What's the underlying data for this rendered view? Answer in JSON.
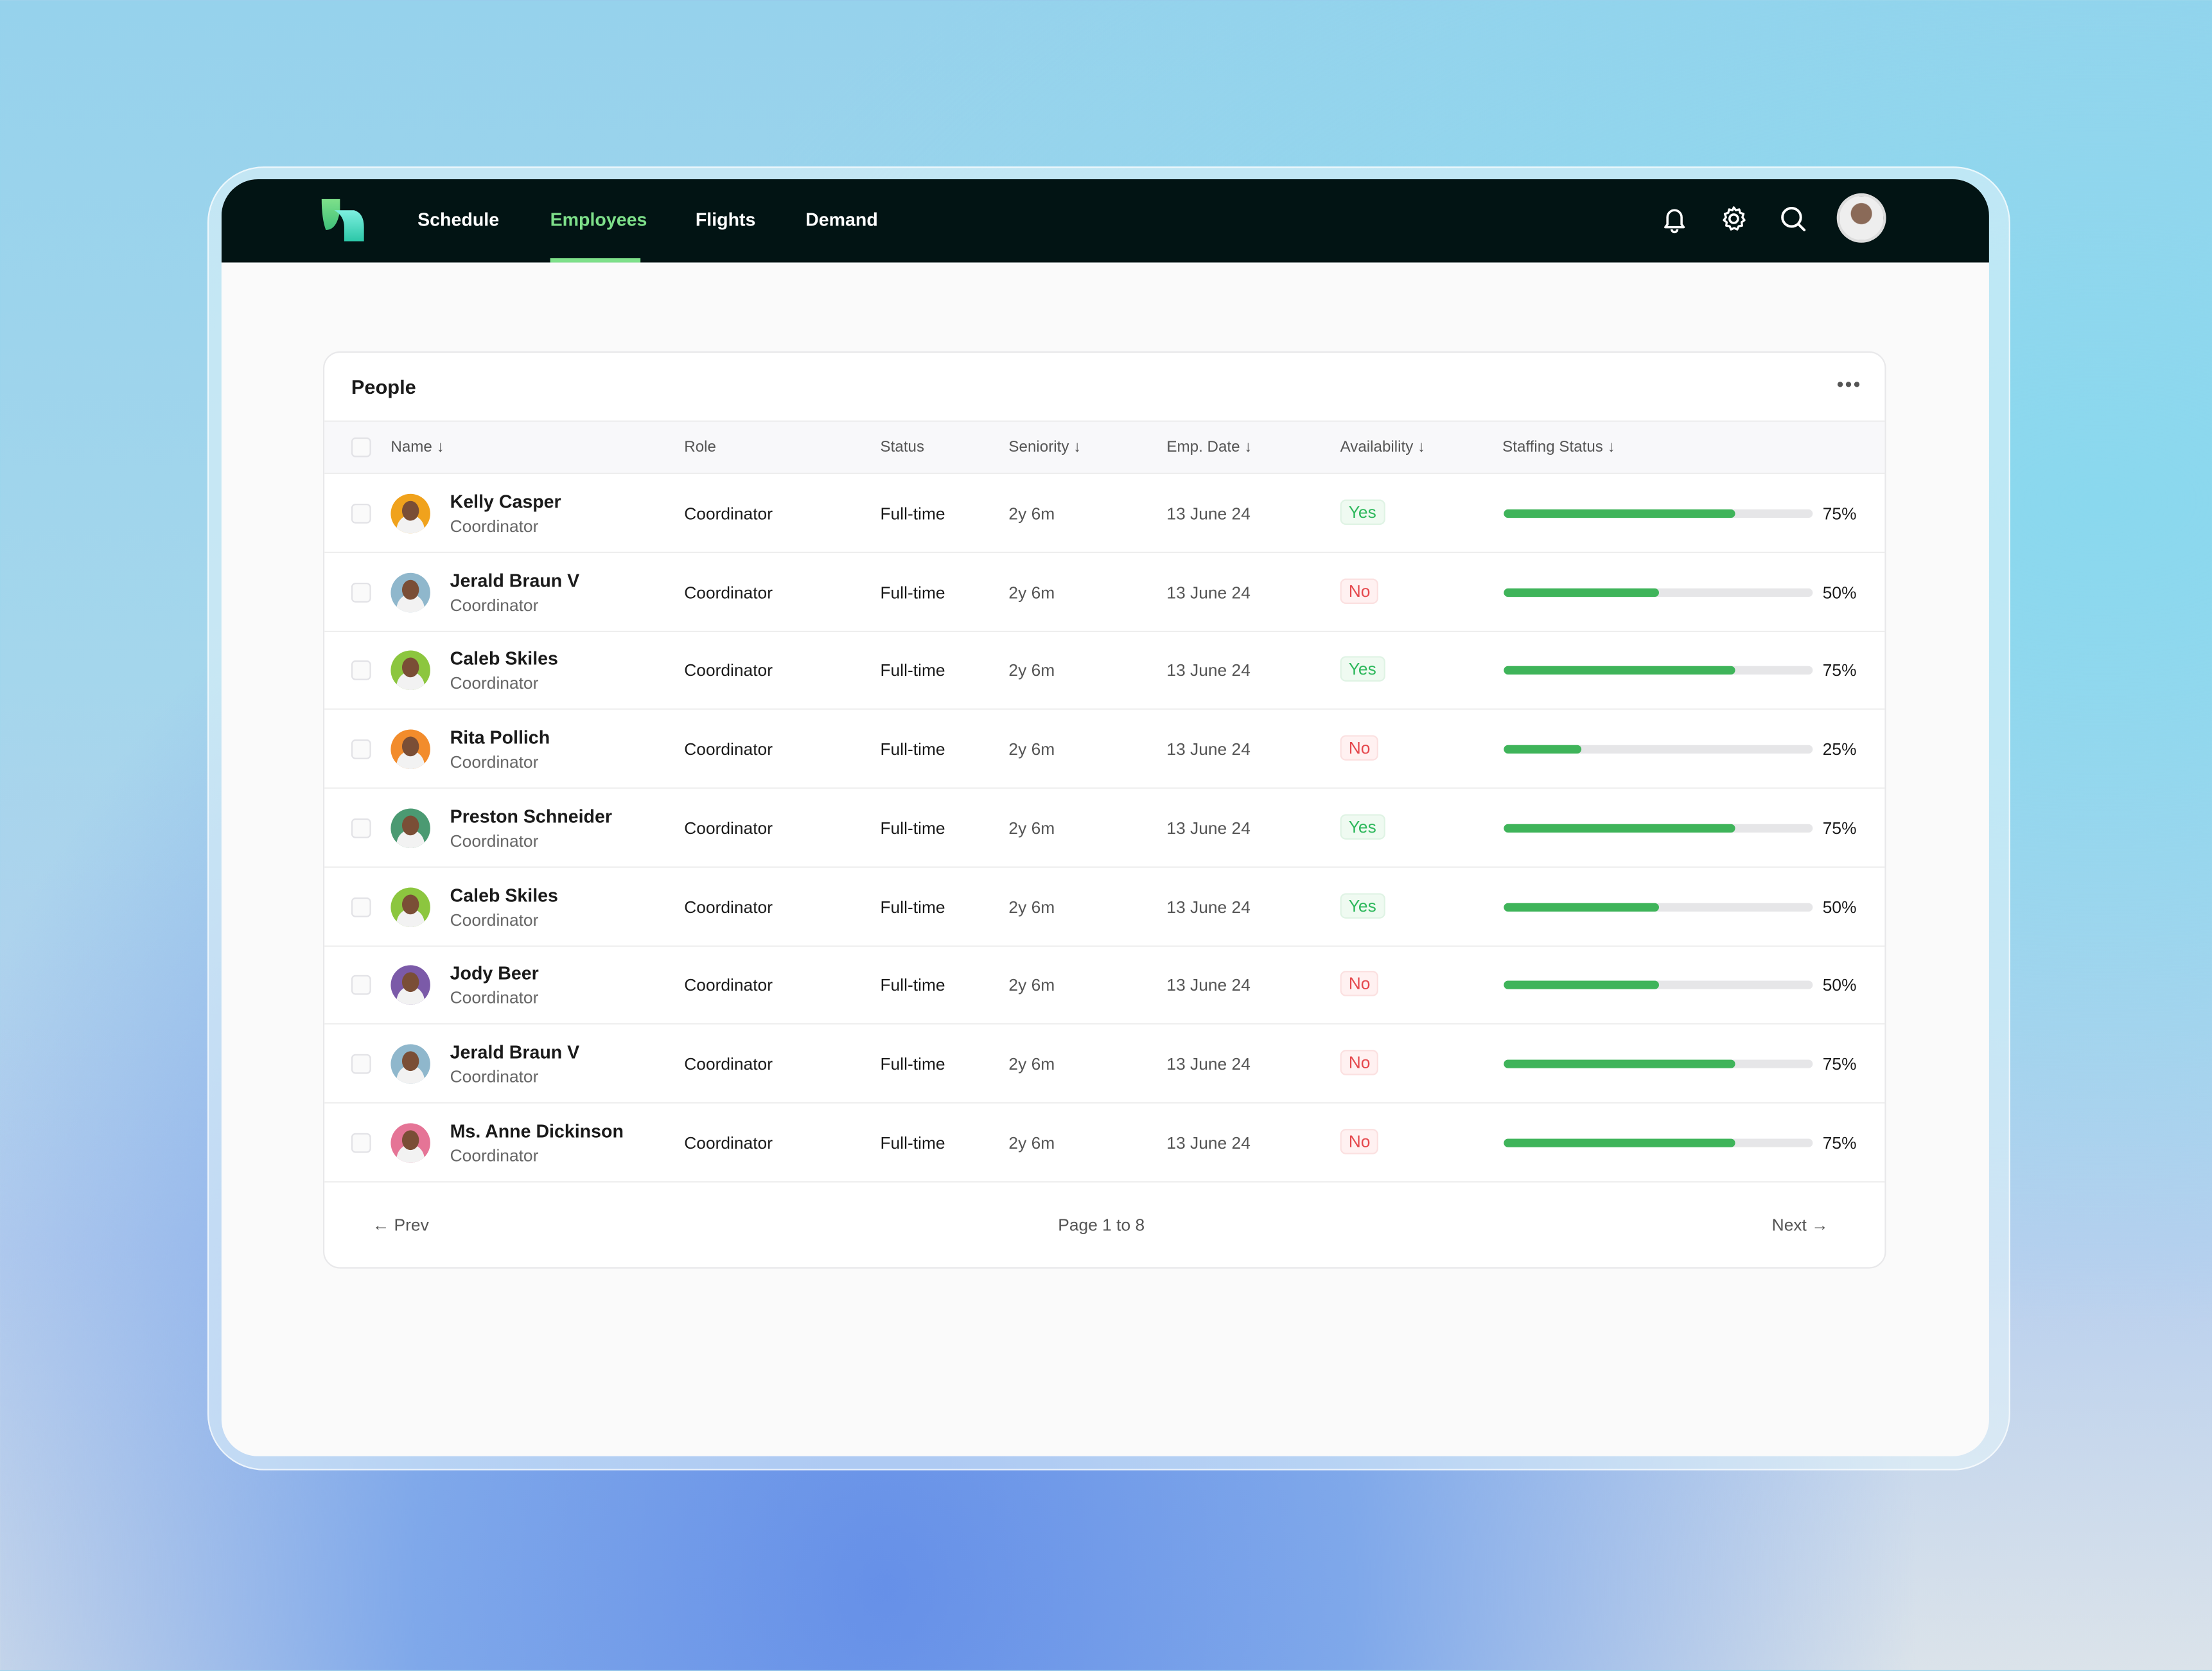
{
  "nav": {
    "items": [
      "Schedule",
      "Employees",
      "Flights",
      "Demand"
    ],
    "active": "Employees"
  },
  "card": {
    "title": "People"
  },
  "columns": [
    "Name",
    "Role",
    "Status",
    "Seniority",
    "Emp. Date",
    "Availability",
    "Staffing Status"
  ],
  "sort_icon": "↓",
  "rows": [
    {
      "name": "Kelly Casper",
      "sub": "Coordinator",
      "role": "Coordinator",
      "status": "Full-time",
      "seniority": "2y 6m",
      "date": "13 June 24",
      "availability": "Yes",
      "staffing": 75,
      "staffing_label": "75%",
      "avatar_color": "#f0a21c"
    },
    {
      "name": "Jerald Braun V",
      "sub": "Coordinator",
      "role": "Coordinator",
      "status": "Full-time",
      "seniority": "2y 6m",
      "date": "13 June 24",
      "availability": "No",
      "staffing": 50,
      "staffing_label": "50%",
      "avatar_color": "#8fb7cc"
    },
    {
      "name": "Caleb Skiles",
      "sub": "Coordinator",
      "role": "Coordinator",
      "status": "Full-time",
      "seniority": "2y 6m",
      "date": "13 June 24",
      "availability": "Yes",
      "staffing": 75,
      "staffing_label": "75%",
      "avatar_color": "#8cc63f"
    },
    {
      "name": "Rita Pollich",
      "sub": "Coordinator",
      "role": "Coordinator",
      "status": "Full-time",
      "seniority": "2y 6m",
      "date": "13 June 24",
      "availability": "No",
      "staffing": 25,
      "staffing_label": "25%",
      "avatar_color": "#f28c2c"
    },
    {
      "name": "Preston Schneider",
      "sub": "Coordinator",
      "role": "Coordinator",
      "status": "Full-time",
      "seniority": "2y 6m",
      "date": "13 June 24",
      "availability": "Yes",
      "staffing": 75,
      "staffing_label": "75%",
      "avatar_color": "#4b9a72"
    },
    {
      "name": "Caleb Skiles",
      "sub": "Coordinator",
      "role": "Coordinator",
      "status": "Full-time",
      "seniority": "2y 6m",
      "date": "13 June 24",
      "availability": "Yes",
      "staffing": 50,
      "staffing_label": "50%",
      "avatar_color": "#8cc63f"
    },
    {
      "name": "Jody Beer",
      "sub": "Coordinator",
      "role": "Coordinator",
      "status": "Full-time",
      "seniority": "2y 6m",
      "date": "13 June 24",
      "availability": "No",
      "staffing": 50,
      "staffing_label": "50%",
      "avatar_color": "#7b5aa8"
    },
    {
      "name": "Jerald Braun V",
      "sub": "Coordinator",
      "role": "Coordinator",
      "status": "Full-time",
      "seniority": "2y 6m",
      "date": "13 June 24",
      "availability": "No",
      "staffing": 75,
      "staffing_label": "75%",
      "avatar_color": "#8fb7cc"
    },
    {
      "name": "Ms. Anne Dickinson",
      "sub": "Coordinator",
      "role": "Coordinator",
      "status": "Full-time",
      "seniority": "2y 6m",
      "date": "13 June 24",
      "availability": "No",
      "staffing": 75,
      "staffing_label": "75%",
      "avatar_color": "#e57496"
    }
  ],
  "pagination": {
    "prev": "Prev",
    "next": "Next",
    "page": "Page 1 to 8"
  },
  "colors": {
    "nav_bg": "#021414",
    "accent": "#7ee08a",
    "bar": "#3fb45a"
  }
}
